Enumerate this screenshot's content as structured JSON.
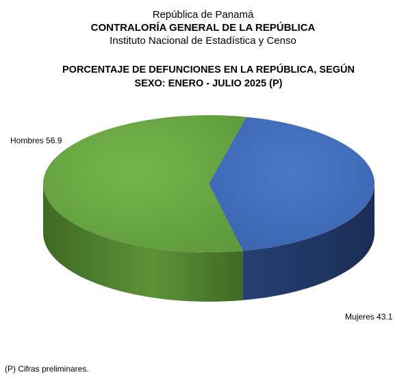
{
  "header": {
    "line1": "República de Panamá",
    "line2": "CONTRALORÍA GENERAL DE LA REPÚBLICA",
    "line3": "Instituto Nacional de Estadística y Censo"
  },
  "title_line1": "PORCENTAJE DE DEFUNCIONES EN LA REPÚBLICA, SEGÚN",
  "title_line2": "SEXO: ENERO - JULIO 2025 (P)",
  "footnote": "(P) Cifras preliminares.",
  "chart_data": {
    "type": "pie",
    "title": "PORCENTAJE DE DEFUNCIONES EN LA REPÚBLICA, SEGÚN SEXO: ENERO - JULIO 2025 (P)",
    "categories": [
      "Hombres",
      "Mujeres"
    ],
    "values": [
      56.9,
      43.1
    ],
    "labels": [
      "Hombres  56.9",
      "Mujeres 43.1"
    ],
    "colors": {
      "Hombres": "#70ad47",
      "Mujeres": "#4472c4"
    },
    "style": "3d"
  }
}
